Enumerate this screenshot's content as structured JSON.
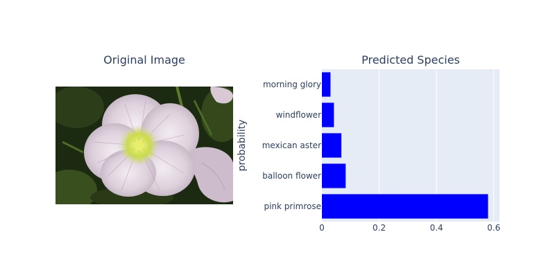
{
  "titles": {
    "left": "Original Image",
    "right": "Predicted Species"
  },
  "colors": {
    "bar": "#0000ff",
    "plot_bg": "#e5ecf6",
    "grid": "#ffffff",
    "text": "#2a3f5f"
  },
  "chart_data": {
    "type": "bar",
    "orientation": "horizontal",
    "title": "Predicted Species",
    "xlabel": "",
    "ylabel": "probability",
    "categories": [
      "morning glory",
      "windflower",
      "mexican aster",
      "balloon flower",
      "pink primrose"
    ],
    "values": [
      0.03,
      0.042,
      0.068,
      0.083,
      0.58
    ],
    "xlim": [
      0,
      0.62
    ],
    "xticks": [
      0,
      0.2,
      0.4,
      0.6
    ],
    "xtick_labels": [
      "0",
      "0.2",
      "0.4",
      "0.6"
    ],
    "grid": true
  }
}
